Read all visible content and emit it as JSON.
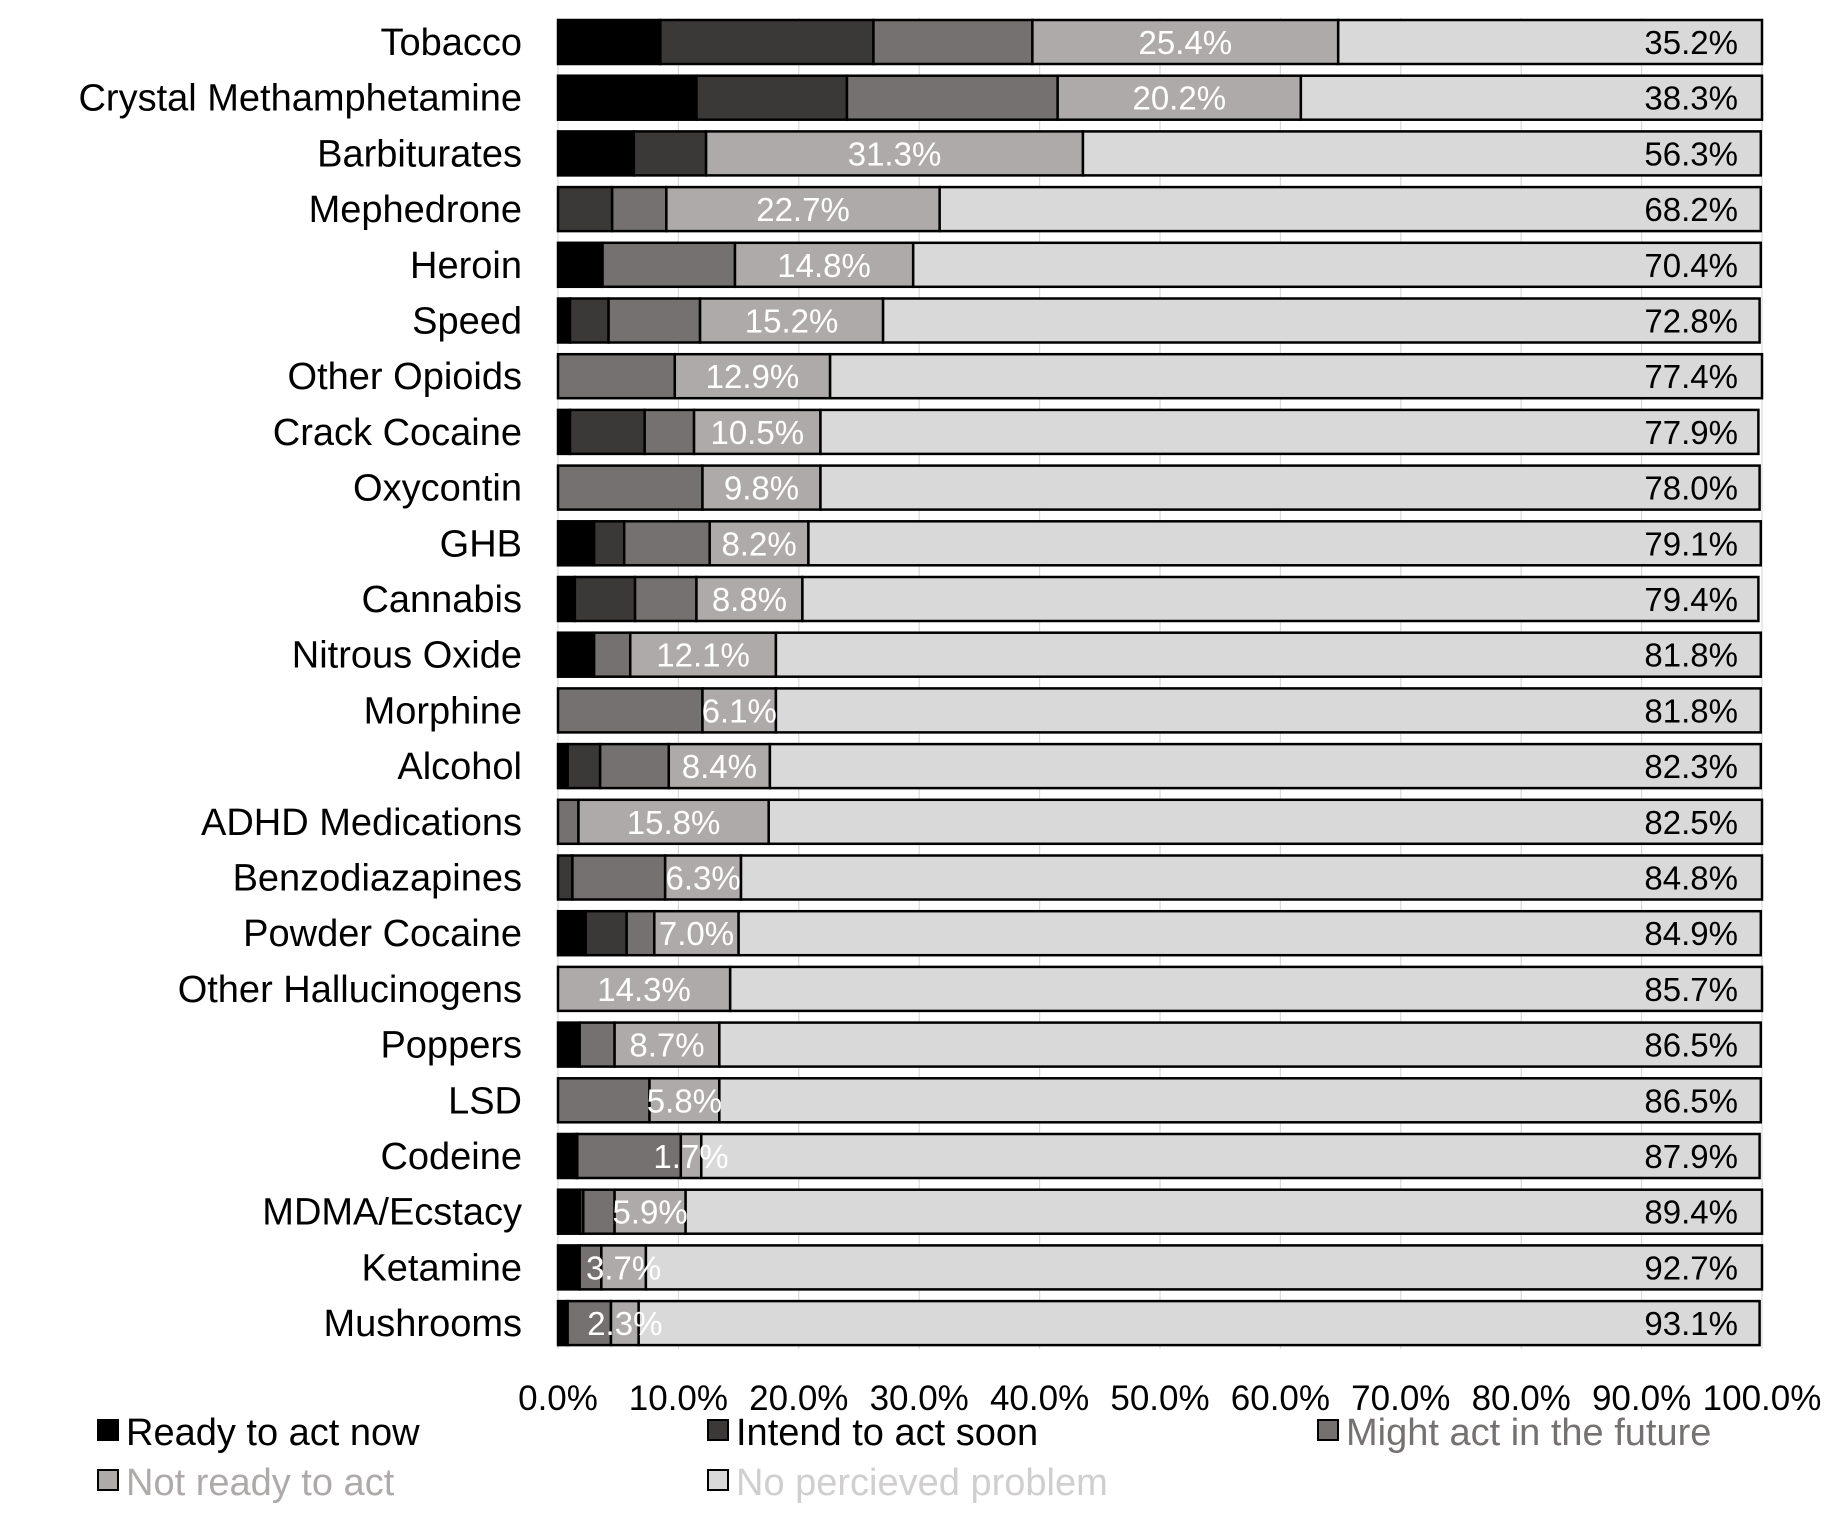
{
  "chart_data": {
    "type": "bar",
    "orientation": "horizontal",
    "stacked": true,
    "categories": [
      "Tobacco",
      "Crystal Methamphetamine",
      "Barbiturates",
      "Mephedrone",
      "Heroin",
      "Speed",
      "Other Opioids",
      "Crack Cocaine",
      "Oxycontin",
      "GHB",
      "Cannabis",
      "Nitrous Oxide",
      "Morphine",
      "Alcohol",
      "ADHD Medications",
      "Benzodiazapines",
      "Powder Cocaine",
      "Other Hallucinogens",
      "Poppers",
      "LSD",
      "Codeine",
      "MDMA/Ecstacy",
      "Ketamine",
      "Mushrooms"
    ],
    "series": [
      {
        "name": "Ready to act now",
        "color": "#000000",
        "values": [
          8.5,
          11.5,
          6.3,
          0,
          3.7,
          1.0,
          0,
          1.0,
          0,
          3.0,
          1.4,
          3.0,
          0,
          0.8,
          0,
          0,
          2.3,
          0,
          1.8,
          0,
          1.5,
          1.8,
          1.8,
          0.8
        ]
      },
      {
        "name": "Intend to act soon",
        "color": "#3b3838",
        "values": [
          17.7,
          12.5,
          6.0,
          4.5,
          0,
          3.2,
          0,
          6.2,
          0,
          2.5,
          5.0,
          0,
          0,
          2.7,
          0,
          1.2,
          3.4,
          0,
          0,
          0,
          0.1,
          0.3,
          0,
          0
        ]
      },
      {
        "name": "Might act in the future",
        "color": "#767171",
        "values": [
          13.2,
          17.5,
          0,
          4.5,
          11.0,
          7.6,
          9.7,
          4.1,
          12.0,
          7.1,
          5.1,
          3.0,
          12.0,
          5.7,
          1.7,
          7.7,
          2.3,
          0,
          2.9,
          7.6,
          8.6,
          2.6,
          1.8,
          3.6
        ]
      },
      {
        "name": "Not ready to act",
        "color": "#aeaaaa",
        "values": [
          25.4,
          20.2,
          31.3,
          22.7,
          14.8,
          15.2,
          12.9,
          10.5,
          9.8,
          8.2,
          8.8,
          12.1,
          6.1,
          8.4,
          15.8,
          6.3,
          7.0,
          14.3,
          8.7,
          5.8,
          1.7,
          5.9,
          3.7,
          2.3
        ]
      },
      {
        "name": "No percieved problem",
        "color": "#d9d9d9",
        "values": [
          35.2,
          38.3,
          56.3,
          68.2,
          70.4,
          72.8,
          77.4,
          77.9,
          78.0,
          79.1,
          79.4,
          81.8,
          81.8,
          82.3,
          82.5,
          84.8,
          84.9,
          85.7,
          86.5,
          86.5,
          87.9,
          89.4,
          92.7,
          93.1
        ]
      }
    ],
    "data_labels": {
      "not_ready": [
        "25.4%",
        "20.2%",
        "31.3%",
        "22.7%",
        "14.8%",
        "15.2%",
        "12.9%",
        "10.5%",
        "9.8%",
        "8.2%",
        "8.8%",
        "12.1%",
        "6.1%",
        "8.4%",
        "15.8%",
        "6.3%",
        "7.0%",
        "14.3%",
        "8.7%",
        "5.8%",
        "1.7%",
        "5.9%",
        "3.7%",
        "2.3%"
      ],
      "no_problem": [
        "35.2%",
        "38.3%",
        "56.3%",
        "68.2%",
        "70.4%",
        "72.8%",
        "77.4%",
        "77.9%",
        "78.0%",
        "79.1%",
        "79.4%",
        "81.8%",
        "81.8%",
        "82.3%",
        "82.5%",
        "84.8%",
        "84.9%",
        "85.7%",
        "86.5%",
        "86.5%",
        "87.9%",
        "89.4%",
        "92.7%",
        "93.1%"
      ]
    },
    "x_ticks": [
      "0.0%",
      "10.0%",
      "20.0%",
      "30.0%",
      "40.0%",
      "50.0%",
      "60.0%",
      "70.0%",
      "80.0%",
      "90.0%",
      "100.0%"
    ],
    "xlim": [
      0,
      100
    ],
    "legend_position": "bottom",
    "grid": true,
    "title": "",
    "xlabel": "",
    "ylabel": ""
  }
}
